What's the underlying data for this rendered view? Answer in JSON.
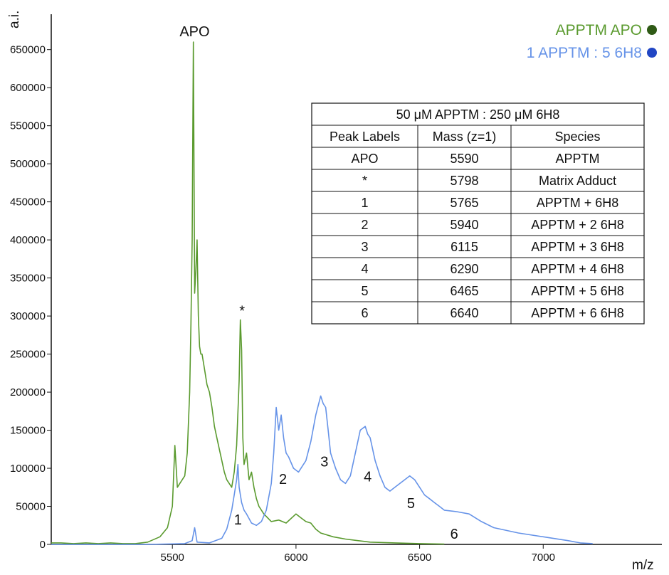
{
  "chart_data": {
    "type": "line",
    "title": "",
    "xlabel": "m/z",
    "ylabel": "a.i.",
    "xlim": [
      5010,
      7480
    ],
    "ylim": [
      0,
      660000
    ],
    "x_ticks": [
      5500,
      6000,
      6500,
      7000
    ],
    "y_ticks": [
      0,
      50000,
      100000,
      150000,
      200000,
      250000,
      300000,
      350000,
      400000,
      450000,
      500000,
      550000,
      600000,
      650000
    ],
    "grid": false,
    "legend_position": "top-right",
    "series": [
      {
        "name": "APPTM APO",
        "color": "#5a9a2e",
        "marker_color": "#2f5a16",
        "x": [
          5010,
          5050,
          5100,
          5150,
          5200,
          5250,
          5300,
          5350,
          5400,
          5450,
          5480,
          5500,
          5510,
          5520,
          5530,
          5540,
          5550,
          5560,
          5570,
          5575,
          5580,
          5585,
          5590,
          5595,
          5600,
          5605,
          5610,
          5615,
          5620,
          5630,
          5640,
          5650,
          5660,
          5670,
          5680,
          5690,
          5700,
          5710,
          5720,
          5730,
          5740,
          5750,
          5760,
          5770,
          5775,
          5780,
          5785,
          5790,
          5800,
          5810,
          5820,
          5830,
          5840,
          5850,
          5870,
          5900,
          5930,
          5960,
          6000,
          6020,
          6040,
          6060,
          6080,
          6100,
          6150,
          6200,
          6250,
          6300,
          6400,
          6500,
          6600
        ],
        "y": [
          2000,
          2000,
          1000,
          2000,
          1000,
          2000,
          1000,
          1000,
          3000,
          10000,
          22000,
          50000,
          130000,
          75000,
          80000,
          85000,
          90000,
          120000,
          200000,
          290000,
          400000,
          660000,
          330000,
          360000,
          400000,
          300000,
          260000,
          250000,
          250000,
          230000,
          210000,
          200000,
          180000,
          155000,
          140000,
          125000,
          110000,
          95000,
          85000,
          80000,
          75000,
          95000,
          130000,
          215000,
          295000,
          255000,
          140000,
          105000,
          120000,
          85000,
          95000,
          75000,
          60000,
          50000,
          40000,
          30000,
          32000,
          28000,
          40000,
          35000,
          30000,
          28000,
          20000,
          15000,
          10000,
          7000,
          5000,
          3000,
          2000,
          1000,
          500
        ]
      },
      {
        "name": "1 APPTM : 5 6H8",
        "color": "#6693e8",
        "marker_color": "#2146c4",
        "x": [
          5010,
          5400,
          5550,
          5580,
          5590,
          5600,
          5650,
          5700,
          5720,
          5740,
          5750,
          5760,
          5765,
          5770,
          5780,
          5790,
          5800,
          5820,
          5840,
          5860,
          5880,
          5900,
          5910,
          5920,
          5930,
          5940,
          5950,
          5960,
          5970,
          5990,
          6010,
          6040,
          6060,
          6080,
          6100,
          6110,
          6120,
          6130,
          6140,
          6160,
          6180,
          6200,
          6220,
          6240,
          6260,
          6280,
          6290,
          6300,
          6320,
          6340,
          6360,
          6380,
          6400,
          6420,
          6440,
          6460,
          6480,
          6500,
          6520,
          6540,
          6560,
          6580,
          6600,
          6650,
          6700,
          6750,
          6800,
          6900,
          7000,
          7100,
          7150,
          7200
        ],
        "y": [
          0,
          0,
          1000,
          5000,
          22000,
          3000,
          2000,
          8000,
          20000,
          45000,
          65000,
          85000,
          105000,
          75000,
          55000,
          45000,
          40000,
          28000,
          25000,
          30000,
          45000,
          80000,
          120000,
          180000,
          150000,
          170000,
          140000,
          120000,
          115000,
          100000,
          95000,
          110000,
          135000,
          170000,
          195000,
          185000,
          180000,
          150000,
          120000,
          100000,
          85000,
          80000,
          90000,
          120000,
          150000,
          155000,
          145000,
          140000,
          110000,
          90000,
          75000,
          70000,
          75000,
          80000,
          85000,
          90000,
          85000,
          75000,
          65000,
          60000,
          55000,
          50000,
          45000,
          43000,
          40000,
          30000,
          22000,
          15000,
          10000,
          5000,
          2000,
          1000
        ]
      }
    ],
    "annotations": [
      {
        "text": "APO",
        "x": 5590,
        "y": 660000
      },
      {
        "text": "*",
        "x": 5782,
        "y": 295000
      },
      {
        "text": "1",
        "x": 5765,
        "y": 0
      },
      {
        "text": "2",
        "x": 5930,
        "y": 70000
      },
      {
        "text": "3",
        "x": 6115,
        "y": 110000
      },
      {
        "text": "4",
        "x": 6290,
        "y": 90000
      },
      {
        "text": "5",
        "x": 6465,
        "y": 55000
      },
      {
        "text": "6",
        "x": 6640,
        "y": 15000
      }
    ]
  },
  "table": {
    "title": "50 μM APPTM : 250 μM 6H8",
    "headers": [
      "Peak Labels",
      "Mass (z=1)",
      "Species"
    ],
    "rows": [
      [
        "APO",
        "5590",
        "APPTM"
      ],
      [
        "*",
        "5798",
        "Matrix Adduct"
      ],
      [
        "1",
        "5765",
        "APPTM + 6H8"
      ],
      [
        "2",
        "5940",
        "APPTM + 2 6H8"
      ],
      [
        "3",
        "6115",
        "APPTM + 3 6H8"
      ],
      [
        "4",
        "6290",
        "APPTM + 4 6H8"
      ],
      [
        "5",
        "6465",
        "APPTM + 5 6H8"
      ],
      [
        "6",
        "6640",
        "APPTM + 6 6H8"
      ]
    ]
  }
}
